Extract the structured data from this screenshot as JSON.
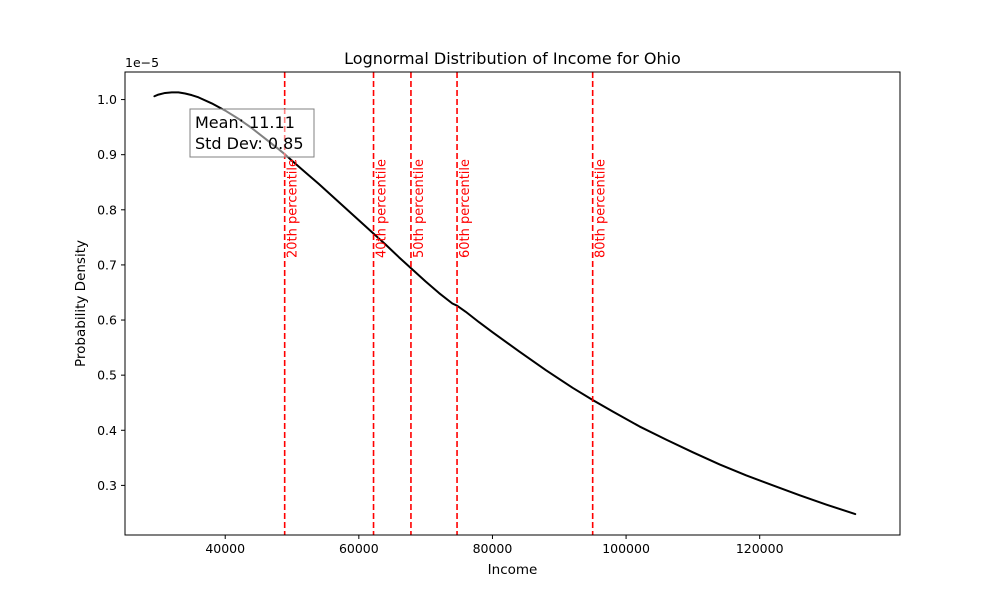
{
  "chart_data": {
    "type": "line",
    "title": "Lognormal Distribution of Income for Ohio",
    "xlabel": "Income",
    "ylabel": "Probability Density",
    "y_offset_label": "1e−5",
    "y_scale_factor": 1e-05,
    "xlim": [
      25000,
      141000
    ],
    "ylim": [
      0.21,
      1.05
    ],
    "x_ticks": [
      40000,
      60000,
      80000,
      100000,
      120000
    ],
    "x_tick_labels": [
      "40000",
      "60000",
      "80000",
      "100000",
      "120000"
    ],
    "y_ticks": [
      0.3,
      0.4,
      0.5,
      0.6,
      0.7,
      0.8,
      0.9,
      1.0
    ],
    "y_tick_labels": [
      "0.3",
      "0.4",
      "0.5",
      "0.6",
      "0.7",
      "0.8",
      "0.9",
      "1.0"
    ],
    "grid": false,
    "series": [
      {
        "color": "#000000",
        "x": [
          29400,
          30000,
          31000,
          32000,
          33000,
          34000,
          35000,
          36000,
          38000,
          40000,
          42000,
          44000,
          46000,
          48000,
          49000,
          50000,
          52000,
          54000,
          56000,
          58000,
          60000,
          62000,
          64000,
          66000,
          68000,
          70000,
          72000,
          74000,
          74700,
          76000,
          78000,
          80000,
          84000,
          88000,
          92000,
          95000,
          98000,
          102000,
          106000,
          110000,
          114000,
          118000,
          122000,
          126000,
          130000,
          134300
        ],
        "y": [
          1.006,
          1.009,
          1.012,
          1.013,
          1.013,
          1.011,
          1.008,
          1.004,
          0.993,
          0.98,
          0.965,
          0.948,
          0.929,
          0.91,
          0.9,
          0.889,
          0.868,
          0.847,
          0.825,
          0.803,
          0.781,
          0.759,
          0.737,
          0.714,
          0.692,
          0.67,
          0.649,
          0.63,
          0.626,
          0.615,
          0.596,
          0.578,
          0.543,
          0.509,
          0.477,
          0.455,
          0.434,
          0.407,
          0.383,
          0.36,
          0.338,
          0.318,
          0.3,
          0.282,
          0.265,
          0.248
        ]
      }
    ],
    "percentiles": [
      {
        "label": "20th percentile",
        "x": 48900,
        "color": "#ff0000"
      },
      {
        "label": "40th percentile",
        "x": 62200,
        "color": "#ff0000"
      },
      {
        "label": "50th percentile",
        "x": 67800,
        "color": "#ff0000"
      },
      {
        "label": "60th percentile",
        "x": 74700,
        "color": "#ff0000"
      },
      {
        "label": "80th percentile",
        "x": 95000,
        "color": "#ff0000"
      }
    ],
    "stats_box": {
      "mean_text": "Mean: 11.11",
      "std_text": "Std Dev: 0.85"
    }
  }
}
